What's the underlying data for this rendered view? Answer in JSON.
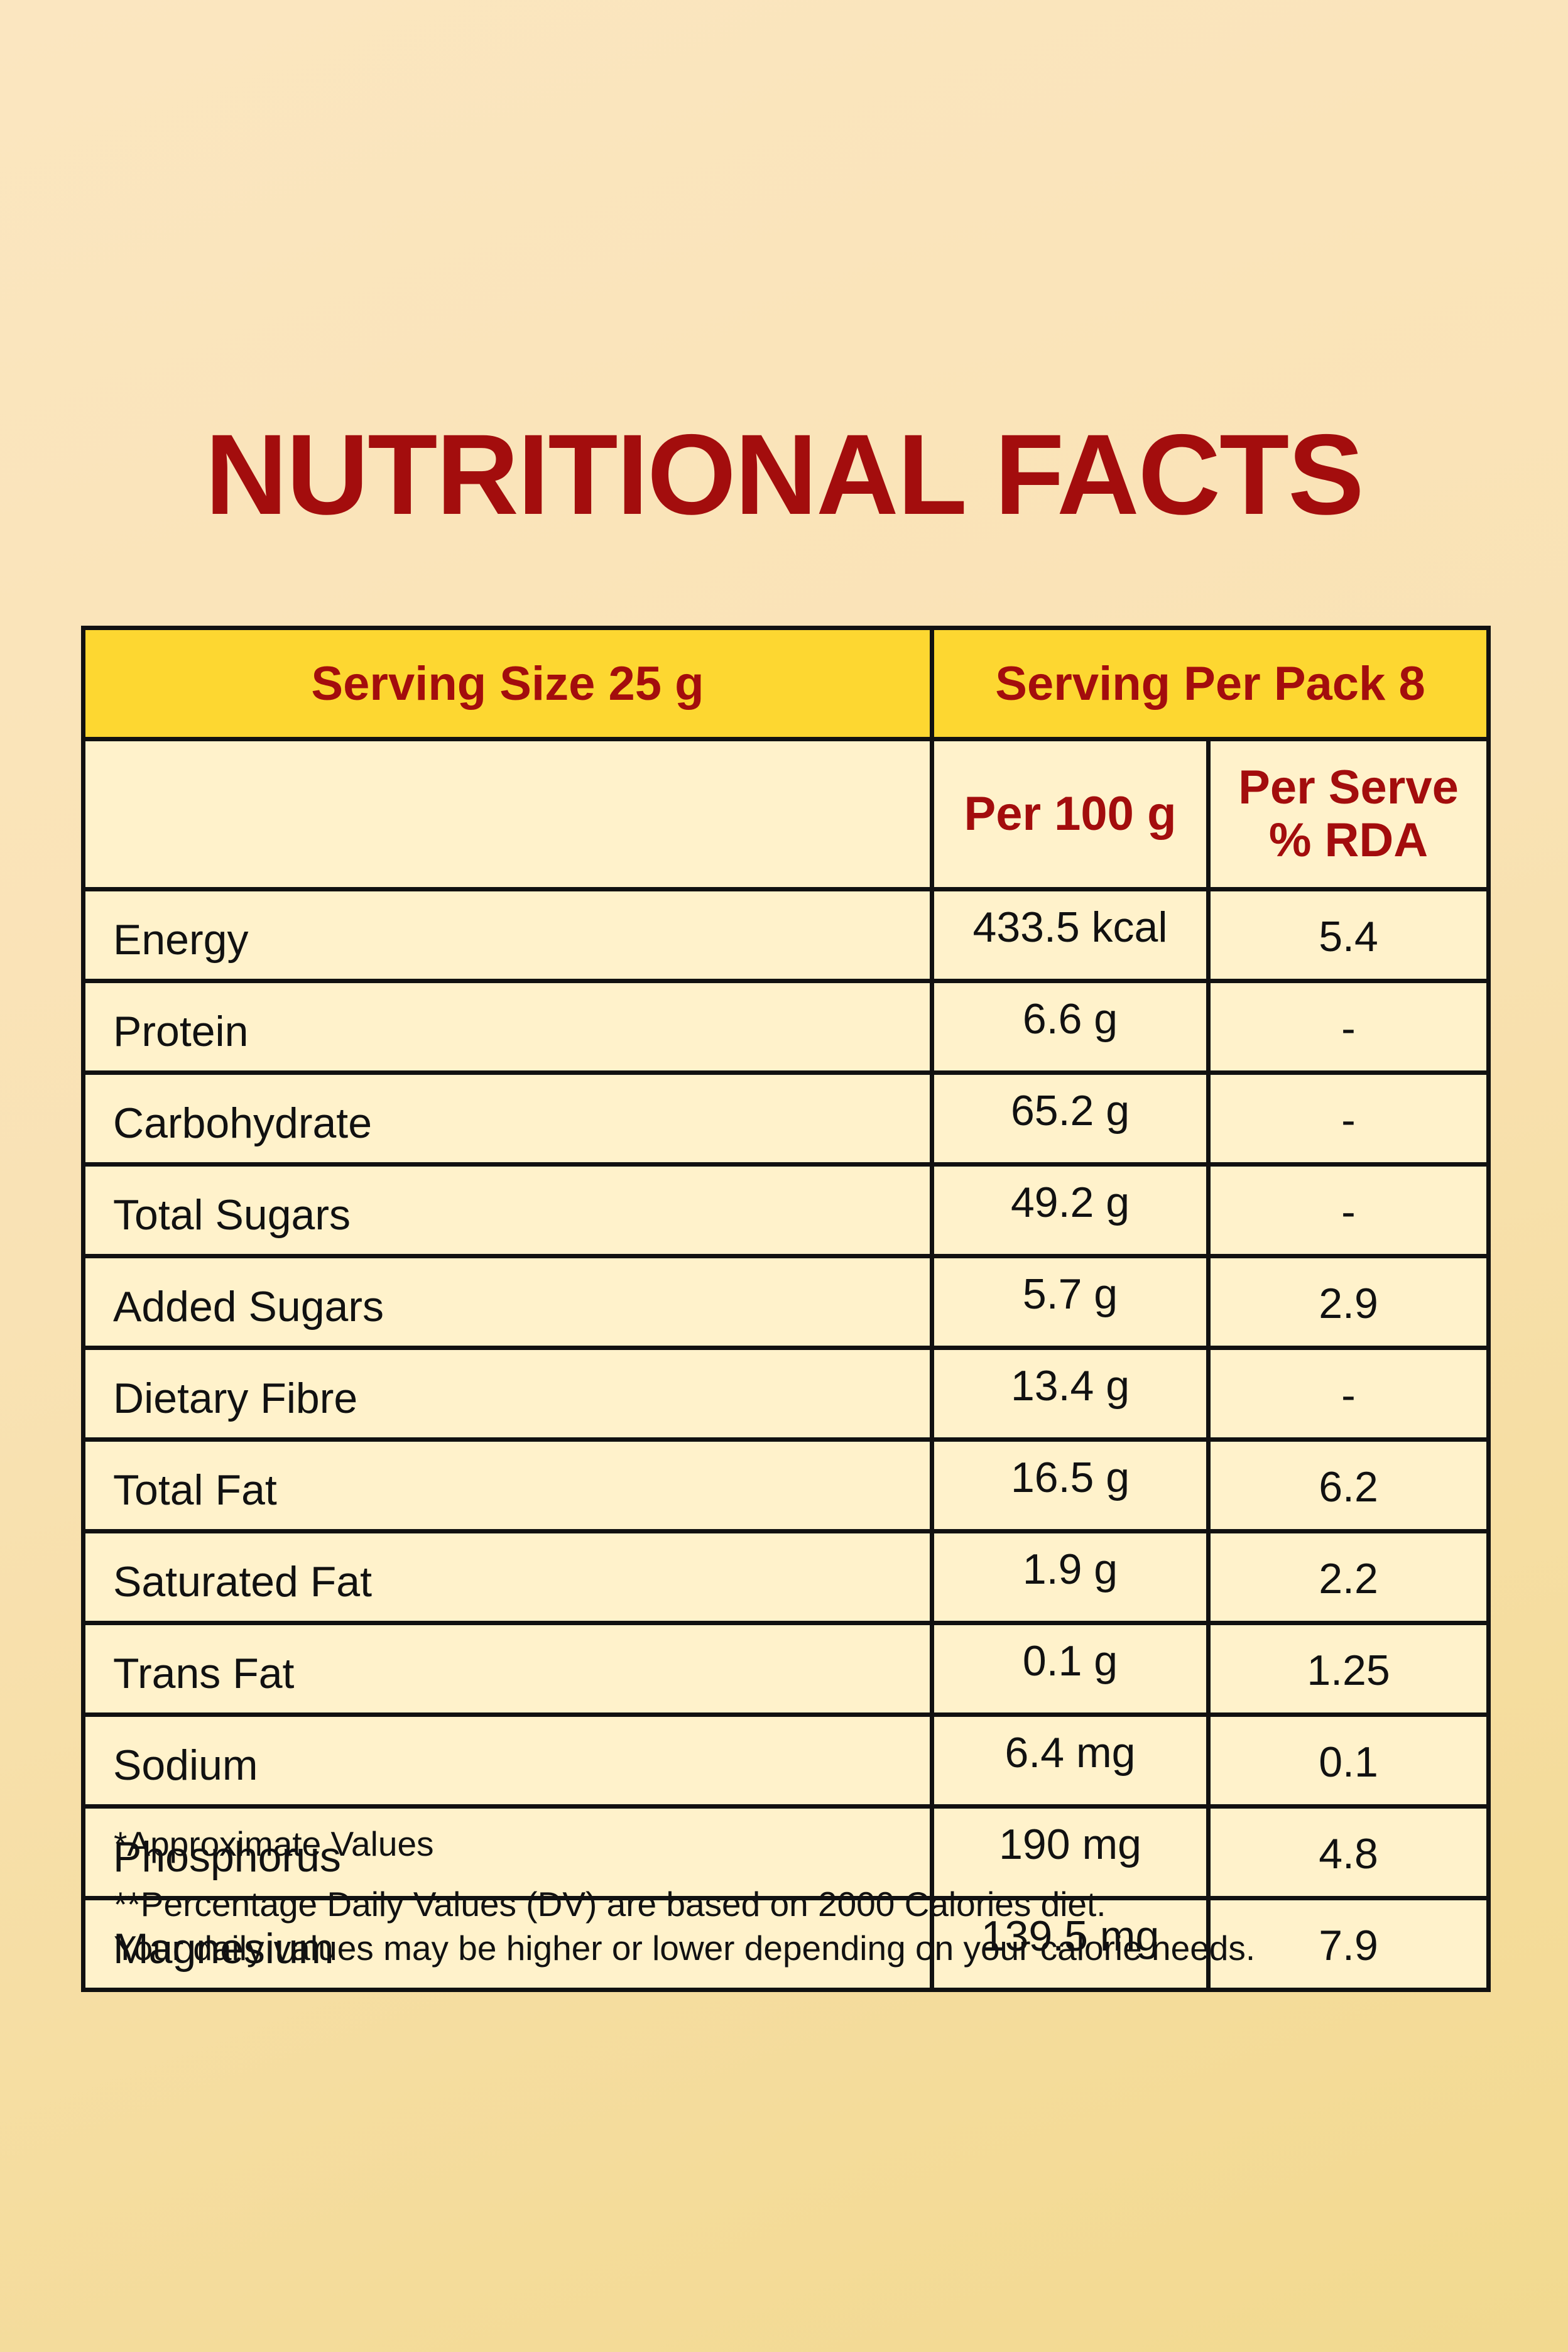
{
  "title": "NUTRITIONAL FACTS",
  "header": {
    "serving_size": "Serving Size 25 g",
    "serving_per_pack": "Serving Per Pack 8"
  },
  "subheader": {
    "nutrient": "",
    "per_100g": "Per 100 g",
    "per_serve_line1": "Per Serve",
    "per_serve_line2": "% RDA"
  },
  "rows": [
    {
      "name": "Energy",
      "per100": "433.5 kcal",
      "rda": "5.4"
    },
    {
      "name": "Protein",
      "per100": "6.6 g",
      "rda": "-"
    },
    {
      "name": "Carbohydrate",
      "per100": "65.2 g",
      "rda": "-"
    },
    {
      "name": "Total Sugars",
      "per100": "49.2 g",
      "rda": "-"
    },
    {
      "name": "Added Sugars",
      "per100": "5.7 g",
      "rda": "2.9"
    },
    {
      "name": "Dietary Fibre",
      "per100": "13.4 g",
      "rda": "-"
    },
    {
      "name": "Total Fat",
      "per100": "16.5 g",
      "rda": "6.2"
    },
    {
      "name": "Saturated Fat",
      "per100": "1.9 g",
      "rda": "2.2"
    },
    {
      "name": "Trans Fat",
      "per100": "0.1 g",
      "rda": "1.25"
    },
    {
      "name": "Sodium",
      "per100": "6.4 mg",
      "rda": "0.1"
    },
    {
      "name": "Phosphorus",
      "per100": "190 mg",
      "rda": "4.8"
    },
    {
      "name": "Magnesium",
      "per100": "139.5 mg",
      "rda": "7.9"
    }
  ],
  "footnotes": {
    "approx": "*Approximate Values",
    "dv_line1": "**Percentage Daily Values (DV) are based on 2000 Calories diet.",
    "dv_line2": "Your daily values may be higher or lower depending on your calorie needs."
  },
  "colors": {
    "title": "#a30d0d",
    "header_bg": "#fdd731",
    "table_bg": "#fff2cb",
    "border": "#111111"
  }
}
